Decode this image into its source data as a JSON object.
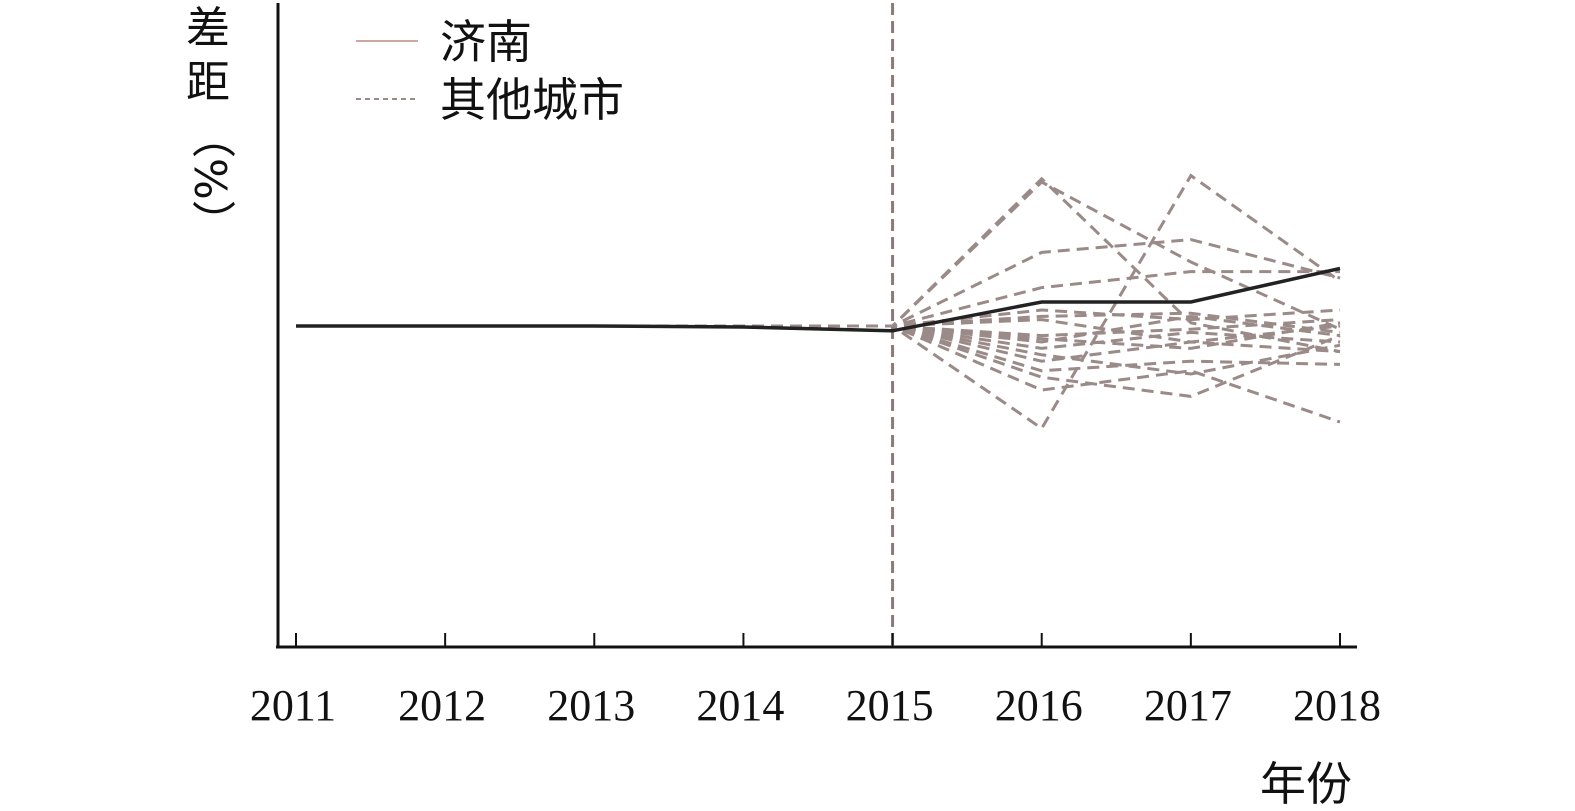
{
  "chart_data": {
    "type": "line",
    "title": "",
    "xlabel": "年份",
    "ylabel": [
      "差",
      "距",
      "（%）"
    ],
    "x": [
      "2011",
      "2012",
      "2013",
      "2014",
      "2015",
      "2016",
      "2017",
      "2018"
    ],
    "ylim": [
      -100,
      40
    ],
    "event_line_x": "2015",
    "legend": {
      "placement": "top-left",
      "entries": [
        "济南",
        "其他城市"
      ]
    },
    "colors": {
      "jinan": "#222222",
      "others": "#9a8a88",
      "axis": "#111111",
      "legend_jinan": "#c9a9a0"
    },
    "series": [
      {
        "name": "济南",
        "style": "solid",
        "values": [
          0,
          0,
          0,
          -0.3,
          -1.5,
          7.5,
          7.5,
          18
        ]
      },
      {
        "name": "其他城市",
        "style": "dashed",
        "group": [
          [
            0,
            0,
            0,
            0,
            0,
            46,
            1,
            -8
          ],
          [
            0,
            0,
            0,
            0,
            0,
            45,
            20,
            -1
          ],
          [
            0,
            0,
            0,
            0,
            0,
            23,
            27,
            15
          ],
          [
            0,
            0,
            0,
            0,
            0,
            -32,
            47,
            14
          ],
          [
            0,
            0,
            0,
            0,
            0,
            12,
            17,
            17
          ],
          [
            0,
            0,
            0,
            0,
            0,
            5,
            2,
            5
          ],
          [
            0,
            0,
            0,
            0,
            0,
            2,
            -5,
            0
          ],
          [
            0,
            0,
            0,
            0,
            0,
            -3,
            -1,
            2
          ],
          [
            0,
            0,
            0,
            0,
            0,
            -5,
            3,
            -3
          ],
          [
            0,
            0,
            0,
            0,
            0,
            -7,
            -2,
            -5
          ],
          [
            0,
            0,
            0,
            0,
            0,
            -11,
            -5,
            -8
          ],
          [
            0,
            0,
            0,
            0,
            0,
            -14,
            -11,
            -12
          ],
          [
            0,
            0,
            0,
            0,
            0,
            -16,
            -22,
            -3
          ],
          [
            0,
            0,
            0,
            0,
            0,
            -20,
            -14,
            -30
          ],
          [
            0,
            0,
            0,
            0,
            0,
            -4,
            -7,
            1
          ],
          [
            0,
            0,
            0,
            0,
            0,
            3,
            4,
            -2
          ],
          [
            0,
            0,
            0,
            0,
            0,
            -9,
            -15,
            -6
          ]
        ]
      }
    ]
  }
}
